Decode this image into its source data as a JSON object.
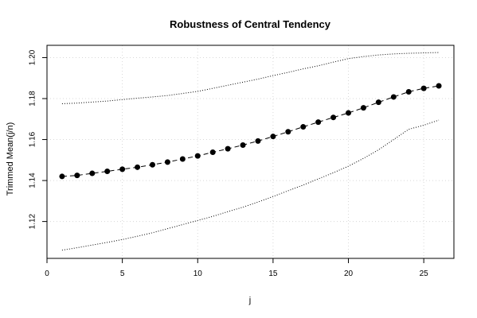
{
  "chart_data": {
    "type": "line",
    "title": "Robustness of Central Tendency",
    "xlabel": "j",
    "ylabel": "Trimmed Mean(j/n)",
    "xlim": [
      0,
      27
    ],
    "ylim": [
      1.102,
      1.206
    ],
    "x_ticks": [
      0,
      5,
      10,
      15,
      20,
      25
    ],
    "y_ticks": [
      1.12,
      1.14,
      1.16,
      1.18,
      1.2
    ],
    "grid": true,
    "legend": "none",
    "x": [
      1,
      2,
      3,
      4,
      5,
      6,
      7,
      8,
      9,
      10,
      11,
      12,
      13,
      14,
      15,
      16,
      17,
      18,
      19,
      20,
      21,
      22,
      23,
      24,
      25,
      26
    ],
    "series": [
      {
        "style": "dashed-with-points",
        "color": "#000000",
        "values": [
          1.142,
          1.1425,
          1.1435,
          1.1445,
          1.1455,
          1.1465,
          1.1477,
          1.149,
          1.1505,
          1.152,
          1.1538,
          1.1555,
          1.1573,
          1.1593,
          1.1615,
          1.1638,
          1.1662,
          1.1685,
          1.1708,
          1.173,
          1.1755,
          1.1782,
          1.1808,
          1.1833,
          1.185,
          1.1862
        ]
      },
      {
        "style": "dotted",
        "color": "#000000",
        "values": [
          1.1775,
          1.1778,
          1.1783,
          1.1788,
          1.1795,
          1.1802,
          1.1808,
          1.1815,
          1.1825,
          1.1835,
          1.185,
          1.1865,
          1.188,
          1.1895,
          1.1912,
          1.1928,
          1.1945,
          1.196,
          1.1978,
          1.1995,
          1.2005,
          1.2013,
          1.2018,
          1.2021,
          1.2023,
          1.2025
        ]
      },
      {
        "style": "dotted",
        "color": "#000000",
        "values": [
          1.106,
          1.1072,
          1.1085,
          1.1098,
          1.1112,
          1.1128,
          1.1145,
          1.1165,
          1.1185,
          1.1205,
          1.1225,
          1.1248,
          1.127,
          1.1295,
          1.1322,
          1.135,
          1.1378,
          1.1408,
          1.1438,
          1.147,
          1.1508,
          1.155,
          1.16,
          1.165,
          1.167,
          1.1695
        ]
      }
    ]
  }
}
